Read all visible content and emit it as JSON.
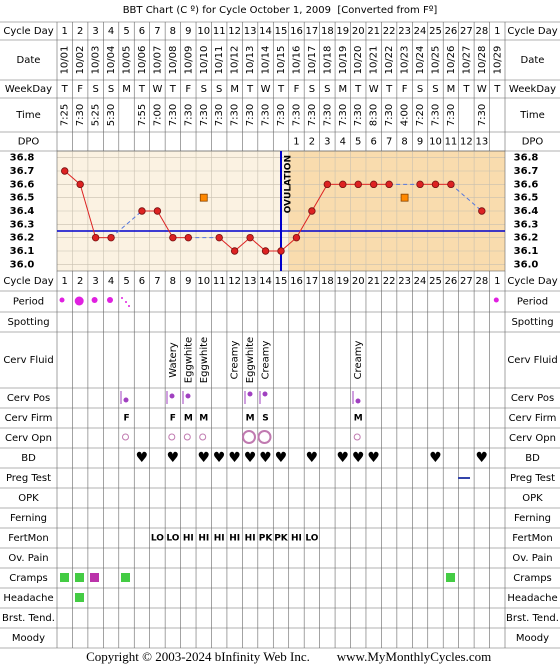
{
  "title": "BBT Chart (C º) for Cycle October 1, 2009  [Converted from Fº]",
  "header": {
    "cycle_day_label": "Cycle Day",
    "date_label": "Date",
    "weekday_label": "WeekDay",
    "time_label": "Time",
    "dpo_label": "DPO"
  },
  "cycle_days": [
    1,
    2,
    3,
    4,
    5,
    6,
    7,
    8,
    9,
    10,
    11,
    12,
    13,
    14,
    15,
    16,
    17,
    18,
    19,
    20,
    21,
    22,
    23,
    24,
    25,
    26,
    27,
    28,
    1
  ],
  "weekdays": [
    "T",
    "F",
    "S",
    "S",
    "M",
    "T",
    "W",
    "T",
    "F",
    "S",
    "S",
    "M",
    "T",
    "W",
    "T",
    "F",
    "S",
    "S",
    "M",
    "T",
    "W",
    "T",
    "F",
    "S",
    "S",
    "M",
    "T",
    "W",
    "T"
  ],
  "times": [
    "7:25",
    "7:30",
    "5:25",
    "5:30",
    null,
    "7:55",
    "7:00",
    "7:30",
    "7:30",
    "7:30",
    "7:30",
    "7:30",
    "7:30",
    "7:30",
    "7:30",
    "7:30",
    "7:30",
    "7:30",
    "7:30",
    "7:30",
    "8:30",
    "7:30",
    "4:00",
    "7:20",
    "7:30",
    "7:30",
    null,
    "7:30",
    null
  ],
  "dpo": [
    null,
    null,
    null,
    null,
    null,
    null,
    null,
    null,
    null,
    null,
    null,
    null,
    null,
    null,
    null,
    1,
    2,
    3,
    4,
    5,
    6,
    7,
    8,
    9,
    10,
    11,
    12,
    13,
    null
  ],
  "chart_data": {
    "type": "line",
    "categories": [
      "10/01",
      "10/02",
      "10/03",
      "10/04",
      "10/05",
      "10/06",
      "10/07",
      "10/08",
      "10/09",
      "10/10",
      "10/11",
      "10/12",
      "10/13",
      "10/14",
      "10/15",
      "10/16",
      "10/17",
      "10/18",
      "10/19",
      "10/20",
      "10/21",
      "10/22",
      "10/23",
      "10/24",
      "10/25",
      "10/26",
      "10/27",
      "10/28",
      "10/29"
    ],
    "series": [
      {
        "color": "#dd2222",
        "values": [
          36.7,
          36.6,
          36.2,
          36.2,
          null,
          36.4,
          36.4,
          36.2,
          36.2,
          null,
          36.2,
          36.1,
          36.2,
          36.1,
          36.1,
          36.2,
          36.4,
          36.6,
          36.6,
          36.6,
          36.6,
          36.6,
          null,
          36.6,
          36.6,
          36.6,
          null,
          36.4,
          null
        ]
      },
      {
        "color": "#ff8800",
        "values": [
          null,
          null,
          null,
          null,
          null,
          null,
          null,
          null,
          null,
          36.5,
          null,
          null,
          null,
          null,
          null,
          null,
          null,
          null,
          null,
          null,
          null,
          null,
          36.5,
          null,
          null,
          null,
          null,
          null,
          null
        ]
      }
    ],
    "coverline": 36.25,
    "coverline_color": "#0000cc",
    "annotation": {
      "text": "OVULATION",
      "x": "10/15"
    },
    "ylim": [
      35.95,
      36.85
    ],
    "yticks": [
      {
        "value": 36,
        "label": "36.0"
      },
      36.1,
      36.2,
      36.3,
      36.4,
      36.5,
      36.6,
      36.7,
      36.8
    ],
    "grid": true
  },
  "rows": [
    {
      "label": "Period"
    },
    {
      "label": "Spotting"
    },
    {
      "label": "Cerv Fluid",
      "color": "#000000",
      "cells": [
        null,
        null,
        null,
        null,
        null,
        null,
        null,
        "Watery",
        "Eggwhite",
        "Eggwhite",
        null,
        "Creamy",
        "Eggwhite",
        "Creamy",
        null,
        null,
        null,
        null,
        null,
        "Creamy",
        null,
        null,
        null,
        null,
        null,
        null,
        null,
        null,
        null
      ]
    },
    {
      "label": "Cerv Pos"
    },
    {
      "label": "Cerv Firm",
      "color": "#aa33aa",
      "cells": [
        null,
        null,
        null,
        null,
        "F",
        null,
        null,
        "F",
        "M",
        "M",
        null,
        null,
        "M",
        "S",
        null,
        null,
        null,
        null,
        null,
        "M",
        null,
        null,
        null,
        null,
        null,
        null,
        null,
        null,
        null
      ]
    },
    {
      "label": "Cerv Opn"
    },
    {
      "label": "BD",
      "color": "#d6457f",
      "cells": [
        null,
        null,
        null,
        null,
        null,
        "♥",
        null,
        "♥",
        null,
        "♥",
        "♥",
        "♥",
        "♥",
        "♥",
        "♥",
        null,
        "♥",
        null,
        "♥",
        "♥",
        "♥",
        null,
        null,
        null,
        "♥",
        null,
        null,
        "♥",
        null
      ]
    },
    {
      "label": "Preg Test"
    },
    {
      "label": "OPK"
    },
    {
      "label": "Ferning"
    },
    {
      "label": "FertMon",
      "color": "#118811",
      "cells": [
        null,
        null,
        null,
        null,
        null,
        null,
        "LO",
        "LO",
        "HI",
        "HI",
        "HI",
        "HI",
        "HI",
        "PK",
        "PK",
        "HI",
        "LO",
        null,
        null,
        null,
        null,
        null,
        null,
        null,
        null,
        null,
        null,
        null,
        null
      ]
    },
    {
      "label": "Ov. Pain"
    },
    {
      "label": "Cramps"
    },
    {
      "label": "Headache"
    },
    {
      "label": "Brst. Tend."
    },
    {
      "label": "Moody"
    }
  ],
  "footer": {
    "copyright": "Copyright © 2003-2024 bInfinity Web Inc.",
    "site": "www.MyMonthlyCycles.com"
  }
}
